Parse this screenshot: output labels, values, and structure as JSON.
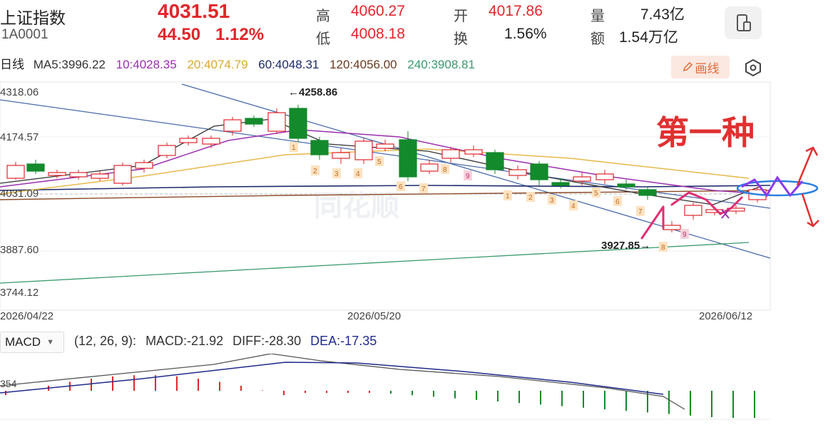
{
  "quote": {
    "name": "上证指数",
    "code": "1A0001",
    "price": "4031.51",
    "change": "44.50",
    "change_pct": "1.12%",
    "high_label": "高",
    "high": "4060.27",
    "low_label": "低",
    "low": "4008.18",
    "open_label": "开",
    "open": "4017.86",
    "turnover_label": "换",
    "turnover": "1.56%",
    "volume_label": "量",
    "volume": "7.43亿",
    "amount_label": "额",
    "amount": "1.54万亿"
  },
  "toolbar": {
    "period_label": "日线",
    "draw_label": "画线",
    "device_icon": "device-toggle-icon",
    "settings_icon": "hexagon-settings-icon"
  },
  "ma": {
    "ma5": "MA5:3996.22",
    "ma10": "10:4028.35",
    "ma20": "20:4074.79",
    "ma60": "60:4048.31",
    "ma120": "120:4056.00",
    "ma240": "240:3908.81"
  },
  "colors": {
    "up": "#e0262b",
    "down": "#138a2c",
    "ma5": "#333333",
    "ma10": "#9b2fae",
    "ma20": "#e6b94a",
    "ma60": "#1f2a6b",
    "ma120": "#8a4a28",
    "ma240": "#3a9a6e",
    "annotation": "#e02e73",
    "channel": "#4a6aaa"
  },
  "chart": {
    "y_labels": [
      "4318.06",
      "4174.57",
      "4031.09",
      "3887.60",
      "3744.12"
    ],
    "x_labels": [
      "2026/04/22",
      "2026/05/20",
      "2026/06/12"
    ],
    "high_marker": "←4258.86",
    "low_marker": "3927.85→",
    "watermark": "同花顺",
    "annotation_text": "第一种",
    "up_count_labels": [
      "1",
      "2",
      "3",
      "4",
      "5",
      "6",
      "7",
      "8",
      "9"
    ],
    "down_count_labels": [
      "1",
      "2",
      "3",
      "4",
      "5",
      "6",
      "7",
      "8",
      "9"
    ]
  },
  "macd": {
    "select_label": "MACD",
    "params": "(12, 26, 9):",
    "macd": "MACD:-21.92",
    "diff": "DIFF:-28.30",
    "dea": "DEA:-17.35",
    "y_label": "354"
  }
}
